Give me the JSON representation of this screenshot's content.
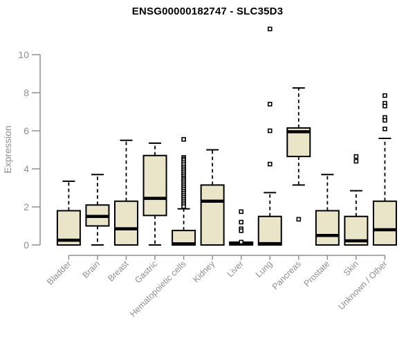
{
  "chart_data": {
    "type": "boxplot",
    "title": "ENSG00000182747 - SLC35D3",
    "ylabel": "Expression",
    "ylim": [
      0,
      10
    ],
    "yticks": [
      0,
      2,
      4,
      6,
      8,
      10
    ],
    "grid": false,
    "legend": "none",
    "categories": [
      "Bladder",
      "Brain",
      "Breast",
      "Gastric",
      "Hematopoietic cells",
      "Kidney",
      "Liver",
      "Lung",
      "Pancreas",
      "Prostate",
      "Skin",
      "Unknown / Other"
    ],
    "series": [
      {
        "name": "Bladder",
        "whisker_low": 0,
        "q1": 0,
        "median": 0.25,
        "q3": 1.8,
        "whisker_high": 3.35,
        "outliers": []
      },
      {
        "name": "Brain",
        "whisker_low": 0,
        "q1": 1.0,
        "median": 1.5,
        "q3": 2.1,
        "whisker_high": 3.7,
        "outliers": []
      },
      {
        "name": "Breast",
        "whisker_low": 0,
        "q1": 0,
        "median": 0.85,
        "q3": 2.3,
        "whisker_high": 5.5,
        "outliers": []
      },
      {
        "name": "Gastric",
        "whisker_low": 0,
        "q1": 1.55,
        "median": 2.45,
        "q3": 4.7,
        "whisker_high": 5.35,
        "outliers": []
      },
      {
        "name": "Hematopoietic cells",
        "whisker_low": 0,
        "q1": 0,
        "median": 0.06,
        "q3": 0.76,
        "whisker_high": 1.9,
        "outliers": [
          5.55,
          4.6,
          4.52,
          4.44,
          4.33,
          4.22,
          4.1,
          4.0,
          3.9,
          3.8,
          3.7,
          3.6,
          3.5,
          3.42,
          3.32,
          3.22,
          3.12,
          3.02,
          2.92,
          2.82,
          2.72,
          2.62,
          2.52,
          2.42,
          2.32,
          2.22,
          2.12,
          2.02
        ]
      },
      {
        "name": "Kidney",
        "whisker_low": 0,
        "q1": 0,
        "median": 2.3,
        "q3": 3.15,
        "whisker_high": 5.0,
        "outliers": []
      },
      {
        "name": "Liver",
        "whisker_low": 0,
        "q1": 0,
        "median": 0.06,
        "q3": 0.15,
        "whisker_high": 0.15,
        "outliers": [
          1.75,
          1.2,
          0.85,
          0.75,
          0.15
        ]
      },
      {
        "name": "Lung",
        "whisker_low": 0,
        "q1": 0,
        "median": 0.07,
        "q3": 1.5,
        "whisker_high": 2.75,
        "outliers": [
          11.35,
          7.4,
          6.0,
          4.25
        ]
      },
      {
        "name": "Pancreas",
        "whisker_low": 3.15,
        "q1": 4.65,
        "median": 5.95,
        "q3": 6.15,
        "whisker_high": 8.25,
        "outliers": [
          1.35
        ]
      },
      {
        "name": "Prostate",
        "whisker_low": 0,
        "q1": 0,
        "median": 0.5,
        "q3": 1.8,
        "whisker_high": 3.7,
        "outliers": []
      },
      {
        "name": "Skin",
        "whisker_low": 0,
        "q1": 0,
        "median": 0.22,
        "q3": 1.5,
        "whisker_high": 2.85,
        "outliers": [
          4.65,
          4.4
        ]
      },
      {
        "name": "Unknown / Other",
        "whisker_low": 0,
        "q1": 0,
        "median": 0.8,
        "q3": 2.3,
        "whisker_high": 5.6,
        "outliers": [
          7.85,
          7.45,
          7.3,
          6.7,
          6.55,
          6.1
        ]
      }
    ]
  },
  "colors": {
    "box_fill": "#EAE4C9",
    "box_stroke": "#000000",
    "median": "#000000",
    "outlier_fill": "#FFFFFF",
    "axis": "#8F8F8F",
    "tick_label": "#8F8F8F",
    "title": "#000000",
    "background": "#FFFFFF"
  }
}
